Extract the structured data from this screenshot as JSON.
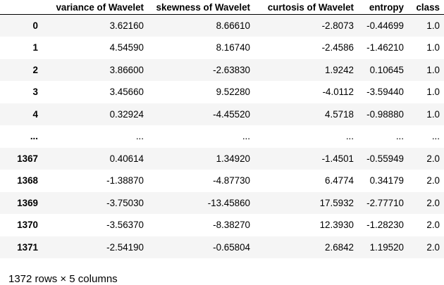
{
  "table": {
    "columns": [
      "",
      "variance of Wavelet",
      "skewness of Wavelet",
      "curtosis of Wavelet",
      "entropy",
      "class"
    ],
    "rows": [
      {
        "index": "0",
        "cells": [
          "3.62160",
          "8.66610",
          "-2.8073",
          "-0.44699",
          "1.0"
        ]
      },
      {
        "index": "1",
        "cells": [
          "4.54590",
          "8.16740",
          "-2.4586",
          "-1.46210",
          "1.0"
        ]
      },
      {
        "index": "2",
        "cells": [
          "3.86600",
          "-2.63830",
          "1.9242",
          "0.10645",
          "1.0"
        ]
      },
      {
        "index": "3",
        "cells": [
          "3.45660",
          "9.52280",
          "-4.0112",
          "-3.59440",
          "1.0"
        ]
      },
      {
        "index": "4",
        "cells": [
          "0.32924",
          "-4.45520",
          "4.5718",
          "-0.98880",
          "1.0"
        ]
      },
      {
        "index": "...",
        "cells": [
          "...",
          "...",
          "...",
          "...",
          "..."
        ]
      },
      {
        "index": "1367",
        "cells": [
          "0.40614",
          "1.34920",
          "-1.4501",
          "-0.55949",
          "2.0"
        ]
      },
      {
        "index": "1368",
        "cells": [
          "-1.38870",
          "-4.87730",
          "6.4774",
          "0.34179",
          "2.0"
        ]
      },
      {
        "index": "1369",
        "cells": [
          "-3.75030",
          "-13.45860",
          "17.5932",
          "-2.77710",
          "2.0"
        ]
      },
      {
        "index": "1370",
        "cells": [
          "-3.56370",
          "-8.38270",
          "12.3930",
          "-1.28230",
          "2.0"
        ]
      },
      {
        "index": "1371",
        "cells": [
          "-2.54190",
          "-0.65804",
          "2.6842",
          "1.19520",
          "2.0"
        ]
      }
    ]
  },
  "footer": {
    "shape_text": "1372 rows × 5 columns"
  }
}
